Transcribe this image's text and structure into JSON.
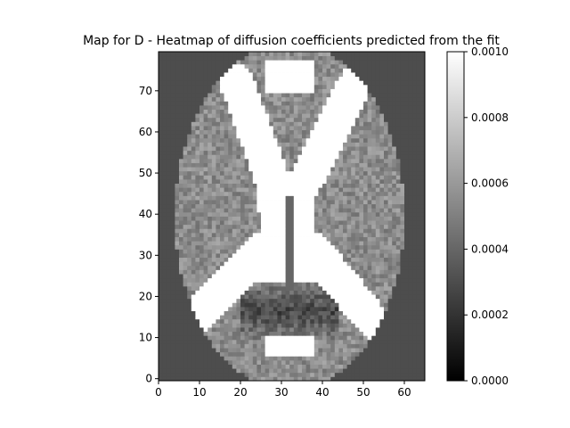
{
  "chart_data": {
    "type": "heatmap",
    "title": "Map for D - Heatmap of diffusion coefficients predicted from the fit",
    "xlabel": "",
    "ylabel": "",
    "xlim": [
      0,
      65
    ],
    "ylim": [
      0,
      80
    ],
    "x_ticks": [
      0,
      10,
      20,
      30,
      40,
      50,
      60
    ],
    "y_ticks": [
      0,
      10,
      20,
      30,
      40,
      50,
      60,
      70
    ],
    "grid": false,
    "colormap": "gray",
    "colorbar": {
      "min": 0.0,
      "max": 0.001,
      "ticks": [
        "0.0000",
        "0.0002",
        "0.0004",
        "0.0006",
        "0.0008",
        "0.0010"
      ],
      "placement": "right"
    },
    "colors": {
      "low": "#000000",
      "high": "#ffffff"
    },
    "value_summary": {
      "background_tissue": 0.00055,
      "ventricles_saturated": 0.001,
      "dark_region_near_bottom_center": 0.0002
    }
  }
}
